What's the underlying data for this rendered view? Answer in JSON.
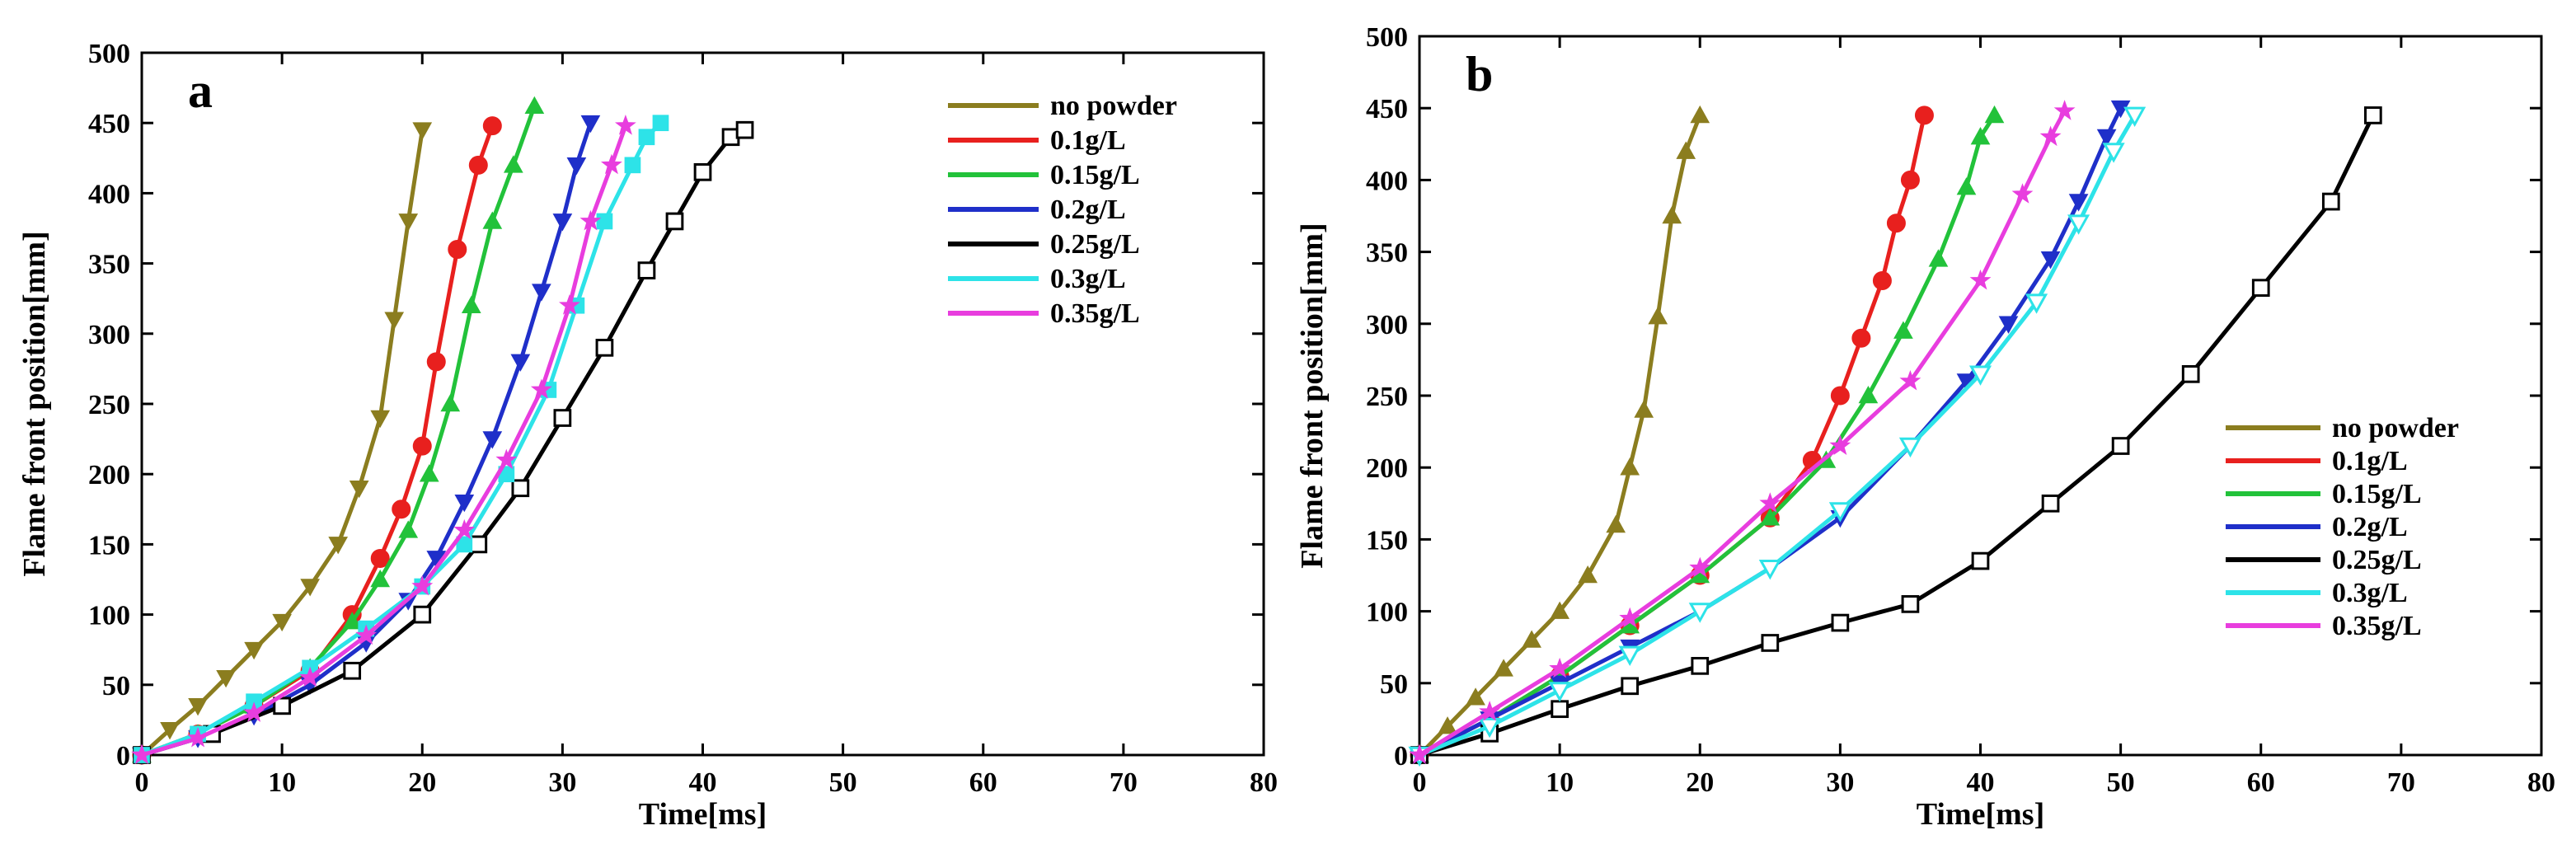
{
  "chart_data": [
    {
      "type": "line",
      "panel_label": "a",
      "xlabel": "Time[ms]",
      "ylabel": "Flame front position[mm]",
      "xlim": [
        0,
        80
      ],
      "ylim": [
        0,
        500
      ],
      "xticks": [
        0,
        10,
        20,
        30,
        40,
        50,
        60,
        70,
        80
      ],
      "yticks": [
        0,
        50,
        100,
        150,
        200,
        250,
        300,
        350,
        400,
        450,
        500
      ],
      "legend_position": "top-right",
      "series": [
        {
          "name": "no powder",
          "color": "#8B7D1F",
          "marker": "triangle-down",
          "filled": true,
          "x": [
            0,
            2,
            4,
            6,
            8,
            10,
            12,
            14,
            15.5,
            17,
            18,
            19,
            20
          ],
          "y": [
            0,
            18,
            35,
            55,
            75,
            95,
            120,
            150,
            190,
            240,
            310,
            380,
            445
          ]
        },
        {
          "name": "0.1g/L",
          "color": "#E8201E",
          "marker": "circle",
          "filled": true,
          "x": [
            0,
            4,
            8,
            12,
            15,
            17,
            18.5,
            20,
            21,
            22.5,
            24,
            25
          ],
          "y": [
            0,
            15,
            35,
            60,
            100,
            140,
            175,
            220,
            280,
            360,
            420,
            448
          ]
        },
        {
          "name": "0.15g/L",
          "color": "#22C23A",
          "marker": "triangle-up",
          "filled": true,
          "x": [
            0,
            4,
            8,
            12,
            15,
            17,
            19,
            20.5,
            22,
            23.5,
            25,
            26.5,
            28
          ],
          "y": [
            0,
            15,
            35,
            62,
            95,
            125,
            160,
            200,
            250,
            320,
            380,
            420,
            462
          ]
        },
        {
          "name": "0.2g/L",
          "color": "#1F2FC9",
          "marker": "triangle-down",
          "filled": true,
          "x": [
            0,
            4,
            8,
            12,
            16,
            19,
            21,
            23,
            25,
            27,
            28.5,
            30,
            31,
            32
          ],
          "y": [
            0,
            12,
            28,
            50,
            80,
            110,
            140,
            180,
            225,
            280,
            330,
            380,
            420,
            450
          ]
        },
        {
          "name": "0.25g/L",
          "color": "#000000",
          "marker": "square",
          "filled": false,
          "x": [
            0,
            5,
            10,
            15,
            20,
            24,
            27,
            30,
            33,
            36,
            38,
            40,
            42,
            43
          ],
          "y": [
            0,
            15,
            35,
            60,
            100,
            150,
            190,
            240,
            290,
            345,
            380,
            415,
            440,
            445
          ]
        },
        {
          "name": "0.3g/L",
          "color": "#2DE3E8",
          "marker": "square",
          "filled": true,
          "x": [
            0,
            4,
            8,
            12,
            16,
            20,
            23,
            26,
            29,
            31,
            33,
            35,
            36,
            37
          ],
          "y": [
            0,
            15,
            38,
            62,
            90,
            120,
            150,
            200,
            260,
            320,
            380,
            420,
            440,
            450
          ]
        },
        {
          "name": "0.35g/L",
          "color": "#E83DDE",
          "marker": "star",
          "filled": true,
          "x": [
            0,
            4,
            8,
            12,
            16,
            20,
            23,
            26,
            28.5,
            30.5,
            32,
            33.5,
            34.5
          ],
          "y": [
            0,
            12,
            30,
            55,
            85,
            120,
            160,
            210,
            260,
            320,
            380,
            420,
            448
          ]
        }
      ]
    },
    {
      "type": "line",
      "panel_label": "b",
      "xlabel": "Time[ms]",
      "ylabel": "Flame front position[mm]",
      "xlim": [
        0,
        80
      ],
      "ylim": [
        0,
        500
      ],
      "xticks": [
        0,
        10,
        20,
        30,
        40,
        50,
        60,
        70,
        80
      ],
      "yticks": [
        0,
        50,
        100,
        150,
        200,
        250,
        300,
        350,
        400,
        450,
        500
      ],
      "legend_position": "center-right",
      "series": [
        {
          "name": "no powder",
          "color": "#8B7D1F",
          "marker": "triangle-up",
          "filled": true,
          "x": [
            0,
            2,
            4,
            6,
            8,
            10,
            12,
            14,
            15,
            16,
            17,
            18,
            19,
            20
          ],
          "y": [
            0,
            20,
            40,
            60,
            80,
            100,
            125,
            160,
            200,
            240,
            305,
            375,
            420,
            445
          ]
        },
        {
          "name": "0.1g/L",
          "color": "#E8201E",
          "marker": "circle",
          "filled": true,
          "x": [
            0,
            5,
            10,
            15,
            20,
            25,
            28,
            30,
            31.5,
            33,
            34,
            35,
            36
          ],
          "y": [
            0,
            25,
            55,
            90,
            125,
            165,
            205,
            250,
            290,
            330,
            370,
            400,
            445
          ]
        },
        {
          "name": "0.15g/L",
          "color": "#22C23A",
          "marker": "triangle-up",
          "filled": true,
          "x": [
            0,
            5,
            10,
            15,
            20,
            25,
            29,
            32,
            34.5,
            37,
            39,
            40,
            41
          ],
          "y": [
            0,
            25,
            55,
            90,
            125,
            165,
            205,
            250,
            295,
            345,
            395,
            430,
            445
          ]
        },
        {
          "name": "0.2g/L",
          "color": "#1F2FC9",
          "marker": "triangle-down",
          "filled": true,
          "x": [
            0,
            5,
            10,
            15,
            20,
            25,
            30,
            35,
            39,
            42,
            45,
            47,
            49,
            50
          ],
          "y": [
            0,
            25,
            50,
            75,
            100,
            130,
            165,
            215,
            260,
            300,
            345,
            385,
            430,
            450
          ]
        },
        {
          "name": "0.25g/L",
          "color": "#000000",
          "marker": "square",
          "filled": false,
          "x": [
            0,
            5,
            10,
            15,
            20,
            25,
            30,
            35,
            40,
            45,
            50,
            55,
            60,
            65,
            68
          ],
          "y": [
            0,
            15,
            32,
            48,
            62,
            78,
            92,
            105,
            135,
            175,
            215,
            265,
            325,
            385,
            445
          ]
        },
        {
          "name": "0.3g/L",
          "color": "#2DE3E8",
          "marker": "triangle-down",
          "filled": false,
          "x": [
            0,
            5,
            10,
            15,
            20,
            25,
            30,
            35,
            40,
            44,
            47,
            49.5,
            51
          ],
          "y": [
            0,
            20,
            45,
            70,
            100,
            130,
            170,
            215,
            265,
            315,
            370,
            420,
            445
          ]
        },
        {
          "name": "0.35g/L",
          "color": "#E83DDE",
          "marker": "star",
          "filled": true,
          "x": [
            0,
            5,
            10,
            15,
            20,
            25,
            30,
            35,
            40,
            43,
            45,
            46
          ],
          "y": [
            0,
            30,
            60,
            95,
            130,
            175,
            215,
            260,
            330,
            390,
            430,
            448
          ]
        }
      ]
    }
  ]
}
